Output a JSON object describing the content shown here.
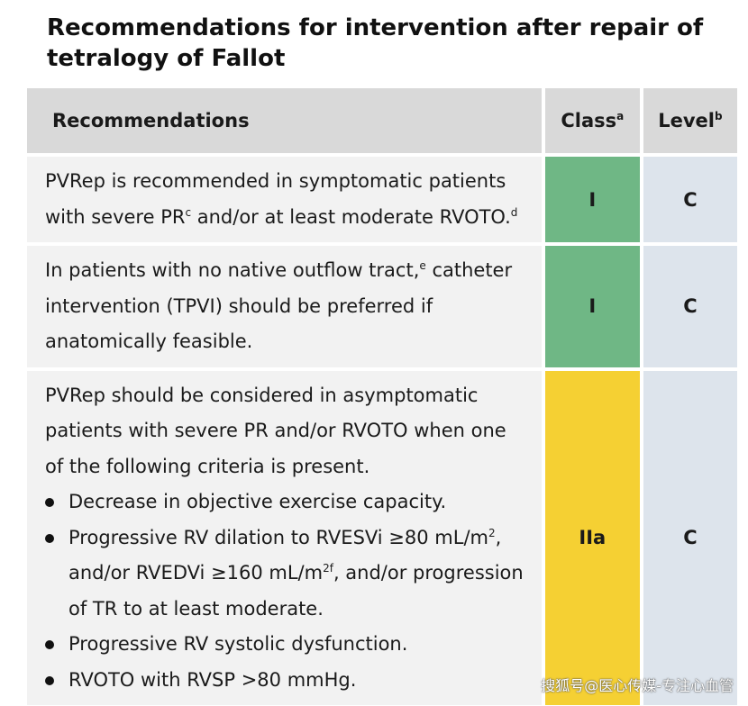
{
  "title": "Recommendations for intervention after repair of tetralogy of Fallot",
  "header": {
    "recommendations": "Recommendations",
    "class": "Class",
    "class_sup": "a",
    "level": "Level",
    "level_sup": "b"
  },
  "rows": [
    {
      "text_before": "PVRep is recommended in symptomatic patients with severe PR",
      "sup1": "c",
      "text_middle": " and/or at least moderate RVOTO.",
      "sup2": "d",
      "class": "I",
      "level": "C",
      "class_color": "#6fb785"
    },
    {
      "text_before": "In patients with no native outflow tract,",
      "sup1": "e",
      "text_after": " catheter intervention (TPVI) should be preferred if anatomically feasible.",
      "class": "I",
      "level": "C",
      "class_color": "#6fb785"
    },
    {
      "intro": "PVRep should be considered in asymptomatic patients with severe PR and/or RVOTO when one of the following criteria is present.",
      "bullets": {
        "b1": "Decrease in objective exercise capacity.",
        "b2_part1": "Progressive RV dilation to RVESVi ≥80 mL/m",
        "b2_sup1": "2",
        "b2_part2": ", and/or RVEDVi ≥160 mL/m",
        "b2_sup2": "2",
        "b2_sup3": "f",
        "b2_part3": ", and/or progression of TR to at least moderate.",
        "b3": "Progressive RV systolic dysfunction.",
        "b4": "RVOTO with RVSP >80 mmHg."
      },
      "class": "IIa",
      "level": "C",
      "class_color": "#f5d033"
    }
  ],
  "watermark": "搜狐号@医心传媒-专注心血管"
}
